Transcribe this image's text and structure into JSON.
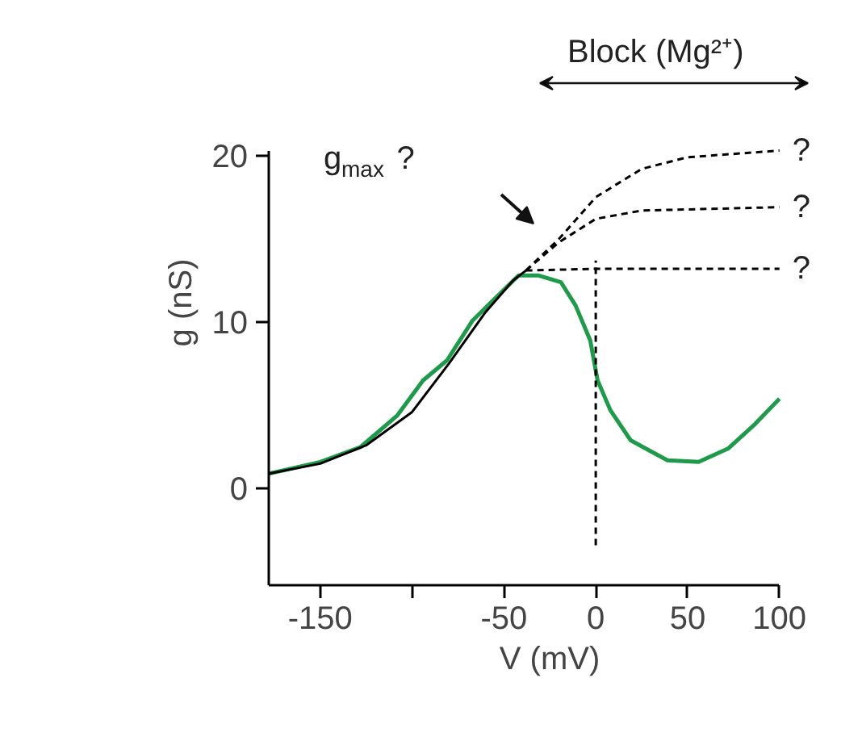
{
  "chart_data": {
    "type": "line",
    "xlabel": "V (mV)",
    "ylabel": "g (nS)",
    "xlim": [
      -178,
      100
    ],
    "ylim": [
      -5.8,
      20.3
    ],
    "xticks": [
      -150,
      {
        "value": -100,
        "label": null
      },
      -50,
      0,
      50,
      100
    ],
    "yticks": [
      0,
      10,
      20
    ],
    "grid": false,
    "marker": "none",
    "series": [
      {
        "color": "#1e9a4a",
        "line_style": "solid",
        "x": [
          -178,
          -150,
          -128,
          -108,
          -94,
          -81,
          -67,
          -56,
          -42,
          -31,
          -19,
          -11,
          -3,
          1,
          8,
          19,
          39,
          56,
          72,
          86,
          100
        ],
        "values": [
          0.9,
          1.6,
          2.5,
          4.4,
          6.5,
          7.7,
          10.1,
          11.3,
          12.8,
          12.8,
          12.4,
          11.0,
          8.9,
          6.5,
          4.7,
          2.9,
          1.7,
          1.6,
          2.4,
          3.8,
          5.4
        ]
      },
      {
        "color": "#000000",
        "line_style": "solid",
        "x": [
          -178,
          -150,
          -125,
          -100,
          -80,
          -60,
          -45,
          -38
        ],
        "values": [
          0.9,
          1.5,
          2.6,
          4.6,
          7.5,
          10.6,
          12.5,
          13.1
        ]
      },
      {
        "color": "#000000",
        "line_style": "dashed",
        "x": [
          -38,
          -20,
          0,
          25,
          50,
          100
        ],
        "values": [
          13.1,
          15.0,
          17.5,
          19.2,
          19.9,
          20.3
        ]
      },
      {
        "color": "#000000",
        "line_style": "dashed",
        "x": [
          -38,
          -20,
          0,
          25,
          100
        ],
        "values": [
          13.1,
          14.8,
          16.2,
          16.7,
          16.9
        ]
      },
      {
        "color": "#000000",
        "line_style": "dashed",
        "x": [
          -38,
          0,
          100
        ],
        "values": [
          13.1,
          13.2,
          13.2
        ]
      },
      {
        "color": "#000000",
        "line_style": "dashed",
        "x": [
          0,
          0
        ],
        "values": [
          -3.4,
          13.7
        ]
      }
    ],
    "annotations": [
      "?",
      "?",
      "?",
      "g$_{max}$ ?",
      "Block (Mg²⁺)"
    ]
  }
}
